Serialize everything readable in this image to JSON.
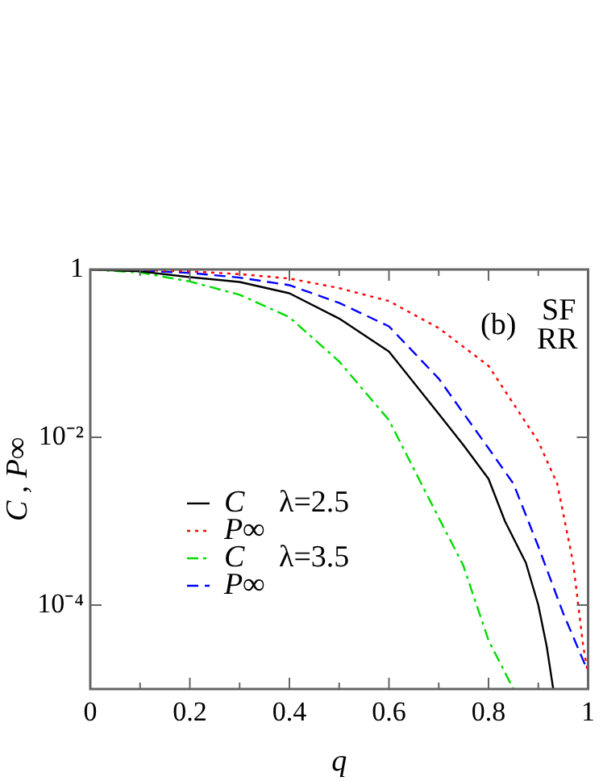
{
  "chart_data": {
    "type": "line",
    "xlabel": "q",
    "ylabel": "C , P∞",
    "log": "y",
    "legend": "left",
    "grid": false,
    "marker": "none",
    "xlim": [
      0,
      1
    ],
    "xticks": [
      0,
      {
        "value": 0.1,
        "label": null
      },
      0.2,
      {
        "value": 0.3,
        "label": null
      },
      0.4,
      {
        "value": 0.5,
        "label": null
      },
      0.6,
      {
        "value": 0.7,
        "label": null
      },
      0.8,
      {
        "value": 0.9,
        "label": null
      },
      1
    ],
    "ylim": [
      1e-05,
      1
    ],
    "yticks": [
      {
        "value": 0.0001,
        "label": "10⁻⁴"
      },
      {
        "value": 0.01,
        "label": "10⁻²"
      },
      1
    ],
    "annotations": [
      "(b)",
      "SF",
      "RR",
      "λ=2.5",
      "λ=3.5"
    ],
    "series": [
      {
        "name": "C",
        "color": "#000000",
        "line_style": "solid",
        "x": [
          0,
          0.1,
          0.2,
          0.3,
          0.4,
          0.5,
          0.6,
          0.7,
          0.75,
          0.8,
          0.833,
          0.875,
          0.9,
          0.917,
          0.93
        ],
        "values": [
          1,
          0.95,
          0.81,
          0.71,
          0.52,
          0.26,
          0.105,
          0.019,
          0.008,
          0.0032,
          0.001,
          0.00032,
          0.0001,
          3.2e-05,
          1e-05
        ]
      },
      {
        "name": "P∞",
        "color": "#ff0000",
        "line_style": "dotted",
        "x": [
          0,
          0.1,
          0.2,
          0.3,
          0.4,
          0.5,
          0.6,
          0.7,
          0.8,
          0.9,
          0.938,
          0.97,
          0.99,
          1
        ],
        "values": [
          1,
          0.98,
          0.95,
          0.88,
          0.78,
          0.6,
          0.42,
          0.2,
          0.071,
          0.0089,
          0.0028,
          0.00032,
          3.3e-05,
          1.5e-05
        ]
      },
      {
        "name": "C",
        "color": "#00dd00",
        "line_style": "dashdot",
        "x": [
          0,
          0.1,
          0.2,
          0.3,
          0.4,
          0.5,
          0.6,
          0.665,
          0.7,
          0.749,
          0.8,
          0.85
        ],
        "values": [
          1,
          0.92,
          0.72,
          0.5,
          0.27,
          0.08,
          0.016,
          0.0028,
          0.0011,
          0.0003,
          3.8e-05,
          1e-05
        ]
      },
      {
        "name": "P∞",
        "color": "#0000ff",
        "line_style": "dashed",
        "x": [
          0,
          0.1,
          0.2,
          0.3,
          0.4,
          0.5,
          0.6,
          0.7,
          0.8,
          0.85,
          0.9,
          0.95,
          1
        ],
        "values": [
          1,
          0.97,
          0.91,
          0.8,
          0.65,
          0.4,
          0.21,
          0.05,
          0.0074,
          0.0028,
          0.0005,
          8e-05,
          1.6e-05
        ]
      }
    ]
  }
}
